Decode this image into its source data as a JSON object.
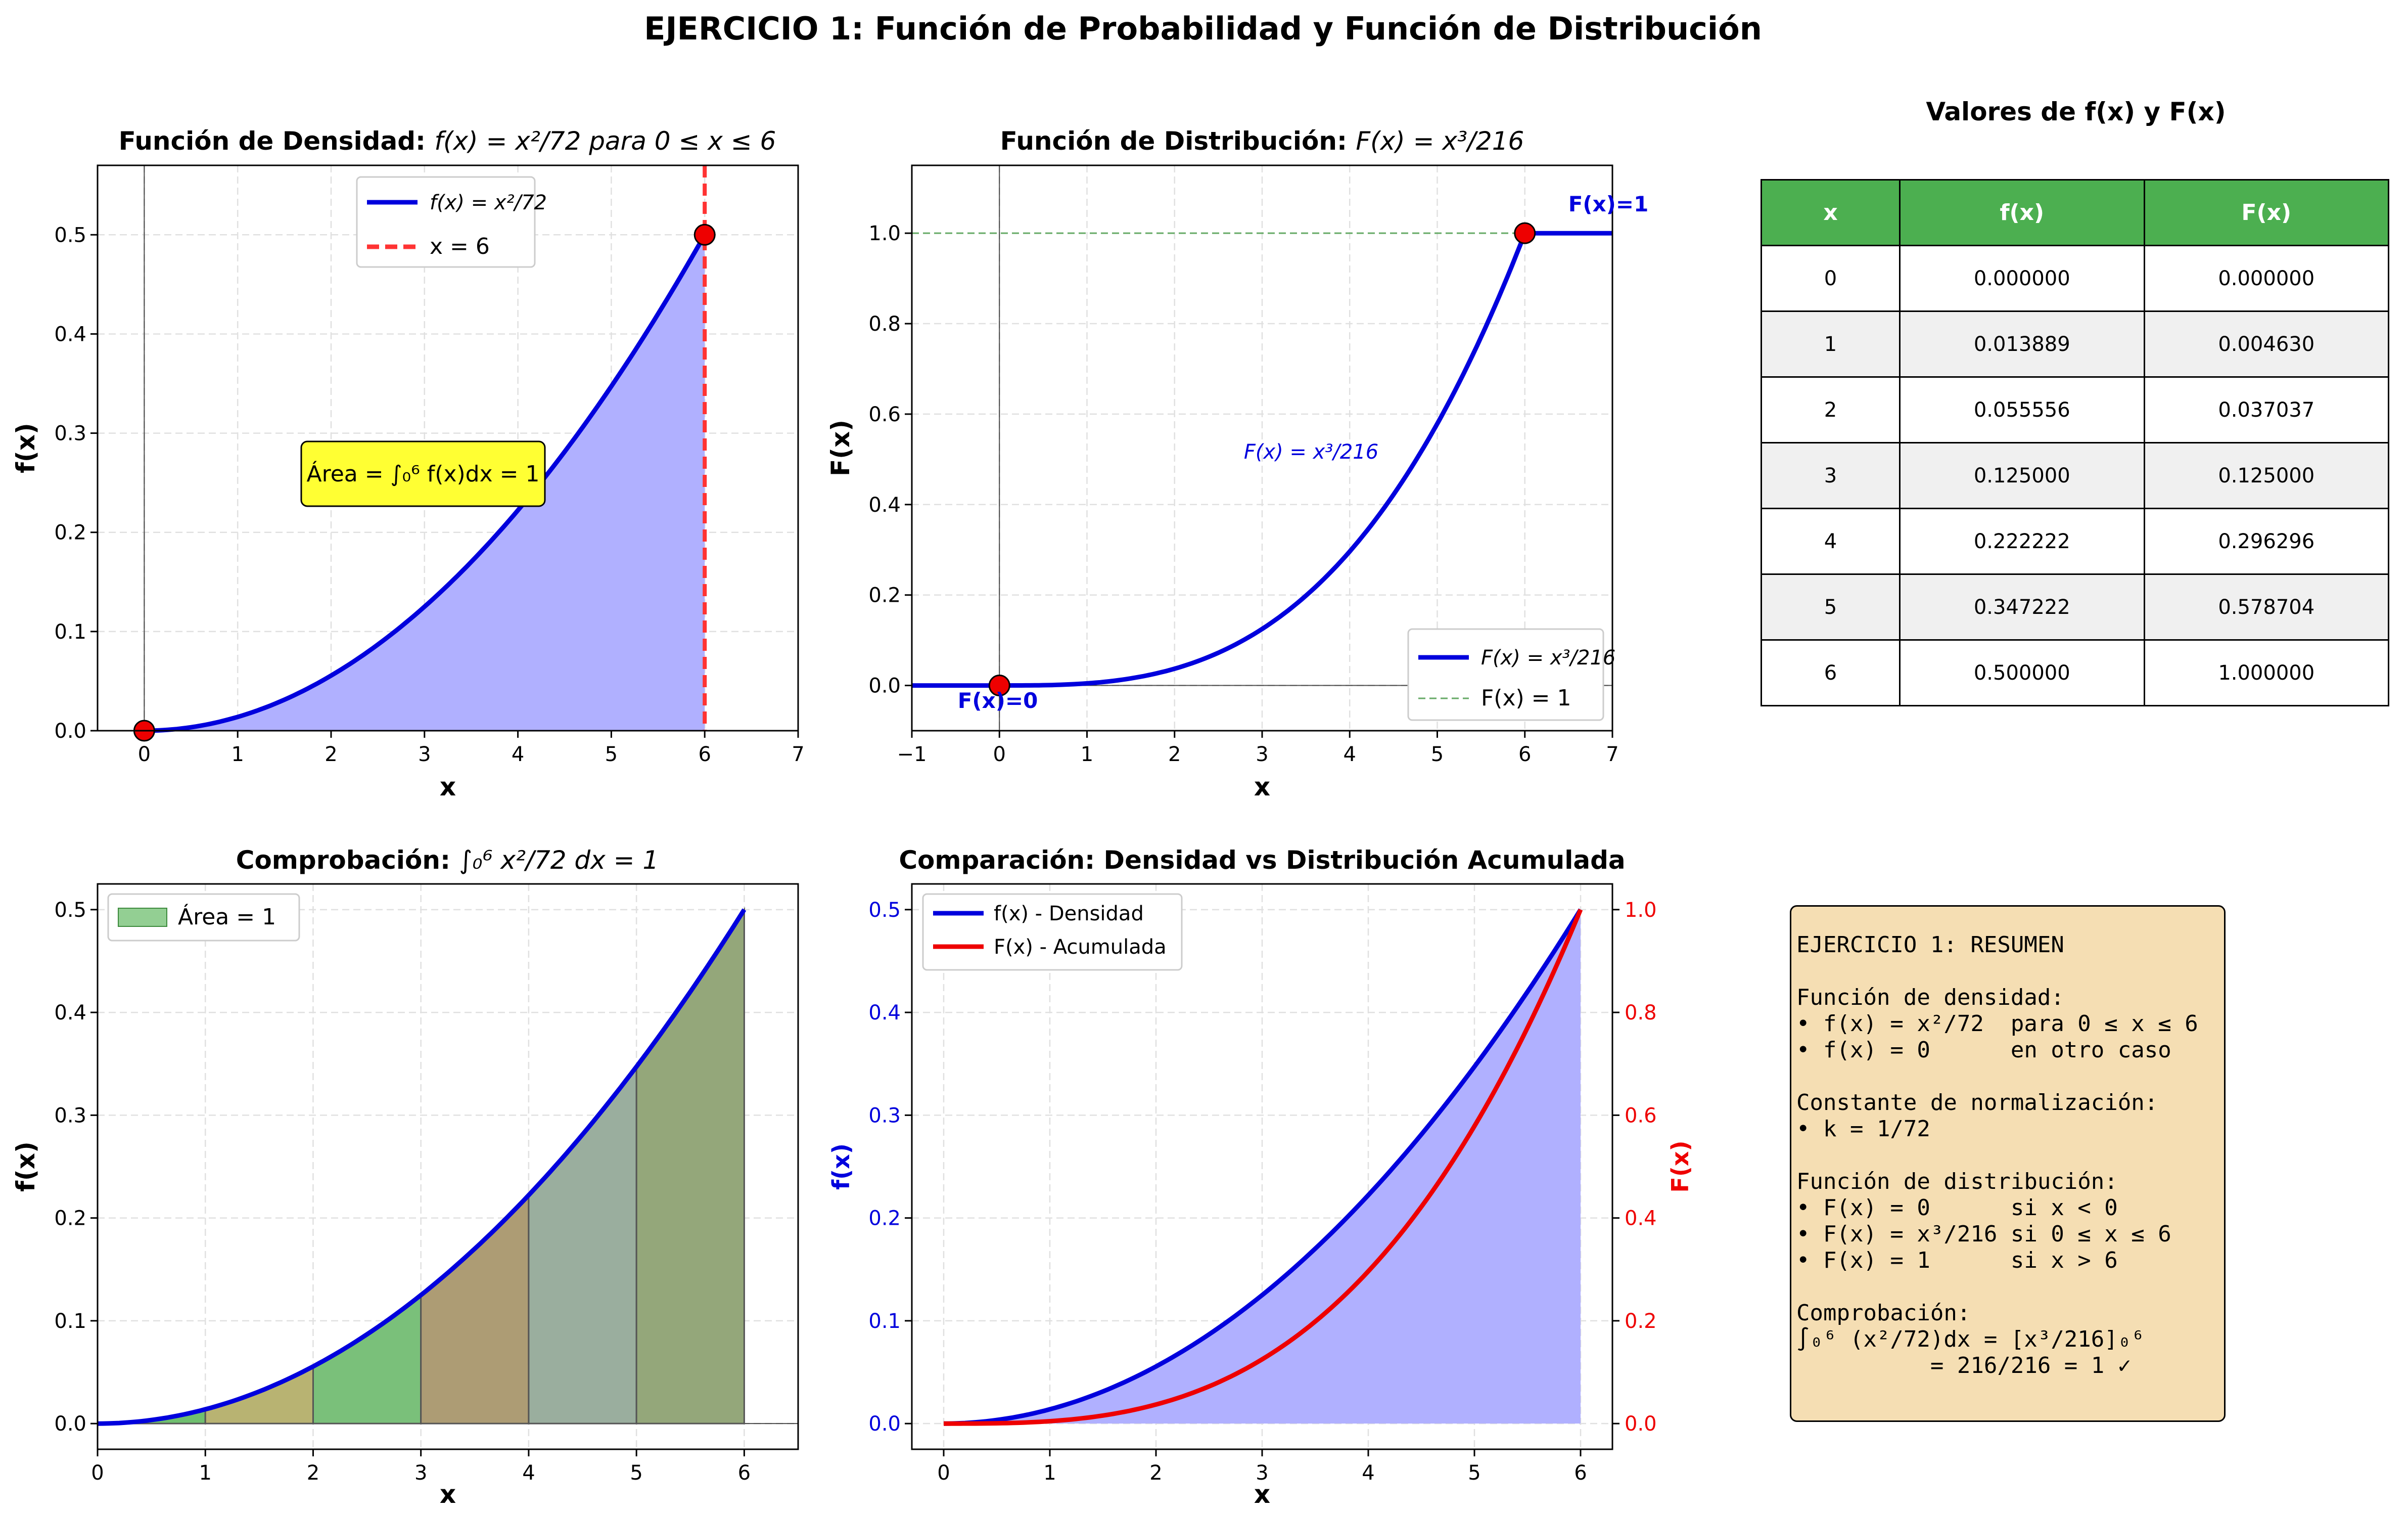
{
  "suptitle": "EJERCICIO 1: Función de Probabilidad y Función de Distribución",
  "colors": {
    "blue": "#0000dd",
    "red": "#ee0000",
    "fill_blue": "#b0b0ff",
    "green_header": "#4caf50",
    "summary_bg": "#f5deb3",
    "area_box": "#ffff33"
  },
  "charts": {
    "density": {
      "title_text": "Función de Densidad: ",
      "title_math": "f(x) = x²/72  para 0 ≤ x ≤ 6",
      "xlabel": "x",
      "ylabel": "f(x)",
      "legend_curve": "f(x) = x²/72",
      "legend_vline": "x = 6",
      "area_label": "Área = ∫₀⁶ f(x)dx = 1"
    },
    "distribution": {
      "title_text": "Función de Distribución: ",
      "title_math": "F(x) = x³/216",
      "xlabel": "x",
      "ylabel": "F(x)",
      "curve_label": "F(x) = x³/216",
      "legend_curve": "F(x) = x³/216",
      "legend_hline": "F(x) = 1",
      "point0_label": "F(x)=0",
      "point6_label": "F(x)=1"
    },
    "check": {
      "title_text": "Comprobación: ",
      "title_math": "∫₀⁶ x²/72 dx = 1",
      "xlabel": "x",
      "ylabel": "f(x)",
      "legend_area": "Área = 1"
    },
    "compare": {
      "title": "Comparación: Densidad vs Distribución Acumulada",
      "xlabel": "x",
      "ylabel_left": "f(x)",
      "ylabel_right": "F(x)",
      "legend_f": "f(x) - Densidad",
      "legend_F": "F(x) - Acumulada"
    }
  },
  "chart_data": [
    {
      "type": "area",
      "name": "density",
      "x": [
        0,
        0.5,
        1,
        1.5,
        2,
        2.5,
        3,
        3.5,
        4,
        4.5,
        5,
        5.5,
        6
      ],
      "y": [
        0,
        0.003472,
        0.013889,
        0.03125,
        0.055556,
        0.086806,
        0.125,
        0.170139,
        0.222222,
        0.28125,
        0.347222,
        0.420139,
        0.5
      ],
      "points": [
        [
          0,
          0
        ],
        [
          6,
          0.5
        ]
      ],
      "vline_x": 6,
      "xlim": [
        -0.5,
        7
      ],
      "ylim": [
        0,
        0.57
      ],
      "xticks": [
        0,
        1,
        2,
        3,
        4,
        5,
        6,
        7
      ],
      "yticks": [
        0.0,
        0.1,
        0.2,
        0.3,
        0.4,
        0.5
      ],
      "grid": true,
      "legend": "upper-center"
    },
    {
      "type": "line",
      "name": "distribution",
      "x": [
        -1,
        0,
        0.5,
        1,
        1.5,
        2,
        2.5,
        3,
        3.5,
        4,
        4.5,
        5,
        5.5,
        6,
        7
      ],
      "y": [
        0,
        0,
        0.000579,
        0.00463,
        0.015625,
        0.037037,
        0.072338,
        0.125,
        0.198495,
        0.296296,
        0.421875,
        0.578704,
        0.770255,
        1,
        1
      ],
      "points": [
        [
          0,
          0
        ],
        [
          6,
          1
        ]
      ],
      "hline_y": 1,
      "xlim": [
        -1,
        7
      ],
      "ylim": [
        -0.1,
        1.15
      ],
      "xticks": [
        -1,
        0,
        1,
        2,
        3,
        4,
        5,
        6,
        7
      ],
      "yticks": [
        0.0,
        0.2,
        0.4,
        0.6,
        0.8,
        1.0
      ],
      "grid": true,
      "legend": "lower-right"
    },
    {
      "type": "bar",
      "name": "check",
      "intervals": [
        [
          0,
          1
        ],
        [
          1,
          2
        ],
        [
          2,
          3
        ],
        [
          3,
          4
        ],
        [
          4,
          5
        ],
        [
          5,
          6
        ]
      ],
      "x": [
        0,
        0.5,
        1,
        1.5,
        2,
        2.5,
        3,
        3.5,
        4,
        4.5,
        5,
        5.5,
        6
      ],
      "y": [
        0,
        0.003472,
        0.013889,
        0.03125,
        0.055556,
        0.086806,
        0.125,
        0.170139,
        0.222222,
        0.28125,
        0.347222,
        0.420139,
        0.5
      ],
      "fill_colors": [
        "#6fbf6f",
        "#b8b372",
        "#7ac07a",
        "#ad9c74",
        "#9aae9e",
        "#94a77a"
      ],
      "xlim": [
        0,
        6.5
      ],
      "ylim": [
        -0.025,
        0.525
      ],
      "xticks": [
        0,
        1,
        2,
        3,
        4,
        5,
        6
      ],
      "yticks": [
        0.0,
        0.1,
        0.2,
        0.3,
        0.4,
        0.5
      ],
      "grid": true,
      "legend": "upper-left"
    },
    {
      "type": "line",
      "name": "compare",
      "x": [
        0,
        0.5,
        1,
        1.5,
        2,
        2.5,
        3,
        3.5,
        4,
        4.5,
        5,
        5.5,
        6
      ],
      "series": [
        {
          "name": "f(x) - Densidad",
          "axis": "left",
          "values": [
            0,
            0.003472,
            0.013889,
            0.03125,
            0.055556,
            0.086806,
            0.125,
            0.170139,
            0.222222,
            0.28125,
            0.347222,
            0.420139,
            0.5
          ]
        },
        {
          "name": "F(x) - Acumulada",
          "axis": "right",
          "values": [
            0,
            0.000579,
            0.00463,
            0.015625,
            0.037037,
            0.072338,
            0.125,
            0.198495,
            0.296296,
            0.421875,
            0.578704,
            0.770255,
            1
          ]
        }
      ],
      "xlim": [
        -0.3,
        6.3
      ],
      "ylim_left": [
        -0.025,
        0.525
      ],
      "ylim_right": [
        -0.05,
        1.05
      ],
      "xticks": [
        0,
        1,
        2,
        3,
        4,
        5,
        6
      ],
      "yticks_left": [
        0.0,
        0.1,
        0.2,
        0.3,
        0.4,
        0.5
      ],
      "yticks_right": [
        0.0,
        0.2,
        0.4,
        0.6,
        0.8,
        1.0
      ],
      "grid": true,
      "legend": "upper-left"
    },
    {
      "type": "table",
      "name": "values",
      "title": "Valores de f(x) y F(x)",
      "columns": [
        "x",
        "f(x)",
        "F(x)"
      ],
      "rows": [
        [
          "0",
          "0.000000",
          "0.000000"
        ],
        [
          "1",
          "0.013889",
          "0.004630"
        ],
        [
          "2",
          "0.055556",
          "0.037037"
        ],
        [
          "3",
          "0.125000",
          "0.125000"
        ],
        [
          "4",
          "0.222222",
          "0.296296"
        ],
        [
          "5",
          "0.347222",
          "0.578704"
        ],
        [
          "6",
          "0.500000",
          "1.000000"
        ]
      ]
    }
  ],
  "summary": {
    "lines": [
      "EJERCICIO 1: RESUMEN",
      "",
      "Función de densidad:",
      "• f(x) = x²/72  para 0 ≤ x ≤ 6",
      "• f(x) = 0      en otro caso",
      "",
      "Constante de normalización:",
      "• k = 1/72",
      "",
      "Función de distribución:",
      "• F(x) = 0      si x < 0",
      "• F(x) = x³/216 si 0 ≤ x ≤ 6",
      "• F(x) = 1      si x > 6",
      "",
      "Comprobación:",
      "∫₀⁶ (x²/72)dx = [x³/216]₀⁶",
      "          = 216/216 = 1 ✓"
    ]
  }
}
